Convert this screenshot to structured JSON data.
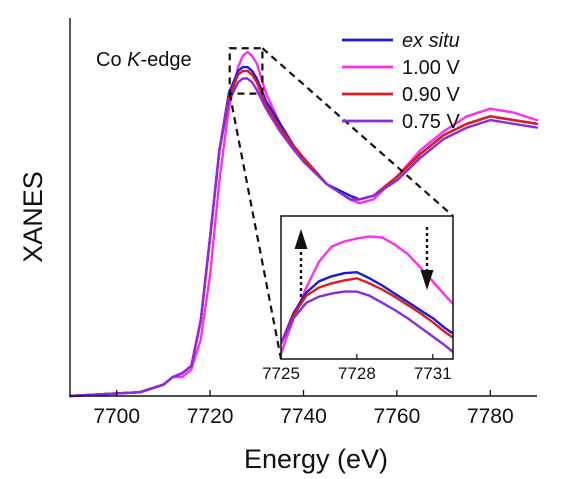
{
  "chart_data": {
    "type": "line",
    "title": "",
    "xlabel": "Energy (eV)",
    "ylabel": "XANES",
    "xlim": [
      7690,
      7790
    ],
    "ylim": [
      0,
      1.0
    ],
    "grid": false,
    "annotation": {
      "prefix": "Co ",
      "italic": "K",
      "suffix": "-edge"
    },
    "legend": {
      "placement": "top-right",
      "entries": [
        {
          "label": "ex situ",
          "italic": true,
          "color": "#1a1adb"
        },
        {
          "label": "1.00 V",
          "italic": false,
          "color": "#ff2df0"
        },
        {
          "label": "0.90 V",
          "italic": false,
          "color": "#e01b1b"
        },
        {
          "label": "0.75 V",
          "italic": false,
          "color": "#8a2be2"
        }
      ]
    },
    "xticks": [
      "7700",
      "7720",
      "7740",
      "7760",
      "7780"
    ],
    "series": [
      {
        "name": "1.00 V",
        "color": "#ff2df0",
        "x": [
          7690,
          7705,
          7710,
          7712,
          7714,
          7716,
          7718,
          7720,
          7722,
          7724,
          7726,
          7727,
          7728,
          7729,
          7730,
          7732,
          7735,
          7738,
          7740,
          7745,
          7750,
          7752,
          7755,
          7760,
          7765,
          7770,
          7775,
          7780,
          7785,
          7790
        ],
        "y": [
          0.0,
          0.01,
          0.03,
          0.05,
          0.05,
          0.07,
          0.15,
          0.32,
          0.57,
          0.76,
          0.87,
          0.9,
          0.91,
          0.9,
          0.88,
          0.8,
          0.72,
          0.66,
          0.63,
          0.56,
          0.52,
          0.51,
          0.52,
          0.58,
          0.65,
          0.7,
          0.74,
          0.76,
          0.75,
          0.73
        ]
      },
      {
        "name": "ex situ",
        "color": "#1a1adb",
        "x": [
          7690,
          7705,
          7710,
          7712,
          7714,
          7716,
          7718,
          7720,
          7722,
          7724,
          7726,
          7727,
          7728,
          7729,
          7730,
          7732,
          7735,
          7738,
          7740,
          7745,
          7750,
          7752,
          7755,
          7760,
          7765,
          7770,
          7775,
          7780,
          7785,
          7790
        ],
        "y": [
          0.0,
          0.01,
          0.03,
          0.05,
          0.06,
          0.08,
          0.2,
          0.42,
          0.65,
          0.8,
          0.86,
          0.87,
          0.87,
          0.86,
          0.84,
          0.78,
          0.72,
          0.66,
          0.63,
          0.56,
          0.53,
          0.52,
          0.53,
          0.58,
          0.64,
          0.69,
          0.72,
          0.74,
          0.73,
          0.72
        ]
      },
      {
        "name": "0.90 V",
        "color": "#e01b1b",
        "x": [
          7690,
          7705,
          7710,
          7712,
          7714,
          7716,
          7718,
          7720,
          7722,
          7724,
          7726,
          7727,
          7728,
          7729,
          7730,
          7732,
          7735,
          7738,
          7740,
          7745,
          7750,
          7752,
          7755,
          7760,
          7765,
          7770,
          7775,
          7780,
          7785,
          7790
        ],
        "y": [
          0.0,
          0.01,
          0.03,
          0.05,
          0.06,
          0.08,
          0.2,
          0.42,
          0.65,
          0.79,
          0.85,
          0.86,
          0.86,
          0.85,
          0.83,
          0.77,
          0.71,
          0.66,
          0.63,
          0.56,
          0.52,
          0.52,
          0.53,
          0.58,
          0.64,
          0.69,
          0.72,
          0.74,
          0.73,
          0.72
        ]
      },
      {
        "name": "0.75 V",
        "color": "#8a2be2",
        "x": [
          7690,
          7705,
          7710,
          7712,
          7714,
          7716,
          7718,
          7720,
          7722,
          7724,
          7726,
          7727,
          7728,
          7729,
          7730,
          7732,
          7735,
          7738,
          7740,
          7745,
          7750,
          7752,
          7755,
          7760,
          7765,
          7770,
          7775,
          7780,
          7785,
          7790
        ],
        "y": [
          0.0,
          0.01,
          0.03,
          0.05,
          0.06,
          0.08,
          0.2,
          0.42,
          0.65,
          0.78,
          0.83,
          0.84,
          0.84,
          0.83,
          0.81,
          0.76,
          0.7,
          0.65,
          0.62,
          0.56,
          0.52,
          0.52,
          0.53,
          0.57,
          0.63,
          0.68,
          0.71,
          0.73,
          0.72,
          0.71
        ]
      }
    ],
    "inset": {
      "xlim": [
        7725,
        7731.8
      ],
      "ylim": [
        0.79,
        0.93
      ],
      "xticks": [
        "7725",
        "7728",
        "7731"
      ],
      "zoom_box": {
        "x": [
          7724.2,
          7731.2
        ],
        "y": [
          0.8,
          0.92
        ]
      },
      "series": [
        {
          "name": "1.00 V",
          "color": "#ff2df0",
          "x": [
            7725,
            7725.5,
            7726,
            7726.5,
            7727,
            7727.5,
            7728,
            7728.5,
            7729,
            7729.5,
            7730,
            7730.5,
            7731,
            7731.5,
            7731.8
          ],
          "y": [
            0.795,
            0.83,
            0.86,
            0.885,
            0.9,
            0.905,
            0.908,
            0.91,
            0.909,
            0.902,
            0.893,
            0.88,
            0.866,
            0.852,
            0.844
          ]
        },
        {
          "name": "ex situ",
          "color": "#1a1adb",
          "x": [
            7725,
            7725.5,
            7726,
            7726.5,
            7727,
            7727.5,
            7728,
            7728.5,
            7729,
            7729.5,
            7730,
            7730.5,
            7731,
            7731.5,
            7731.8
          ],
          "y": [
            0.805,
            0.835,
            0.855,
            0.866,
            0.871,
            0.874,
            0.875,
            0.869,
            0.862,
            0.854,
            0.846,
            0.838,
            0.83,
            0.82,
            0.815
          ]
        },
        {
          "name": "0.90 V",
          "color": "#e01b1b",
          "x": [
            7725,
            7725.5,
            7726,
            7726.5,
            7727,
            7727.5,
            7728,
            7728.5,
            7729,
            7729.5,
            7730,
            7730.5,
            7731,
            7731.5,
            7731.8
          ],
          "y": [
            0.805,
            0.833,
            0.852,
            0.86,
            0.864,
            0.867,
            0.869,
            0.864,
            0.858,
            0.851,
            0.843,
            0.835,
            0.826,
            0.816,
            0.811
          ]
        },
        {
          "name": "0.75 V",
          "color": "#8a2be2",
          "x": [
            7725,
            7725.5,
            7726,
            7726.5,
            7727,
            7727.5,
            7728,
            7728.5,
            7729,
            7729.5,
            7730,
            7730.5,
            7731,
            7731.5,
            7731.8
          ],
          "y": [
            0.805,
            0.83,
            0.845,
            0.851,
            0.854,
            0.856,
            0.856,
            0.852,
            0.845,
            0.838,
            0.83,
            0.821,
            0.812,
            0.803,
            0.797
          ]
        }
      ]
    }
  }
}
